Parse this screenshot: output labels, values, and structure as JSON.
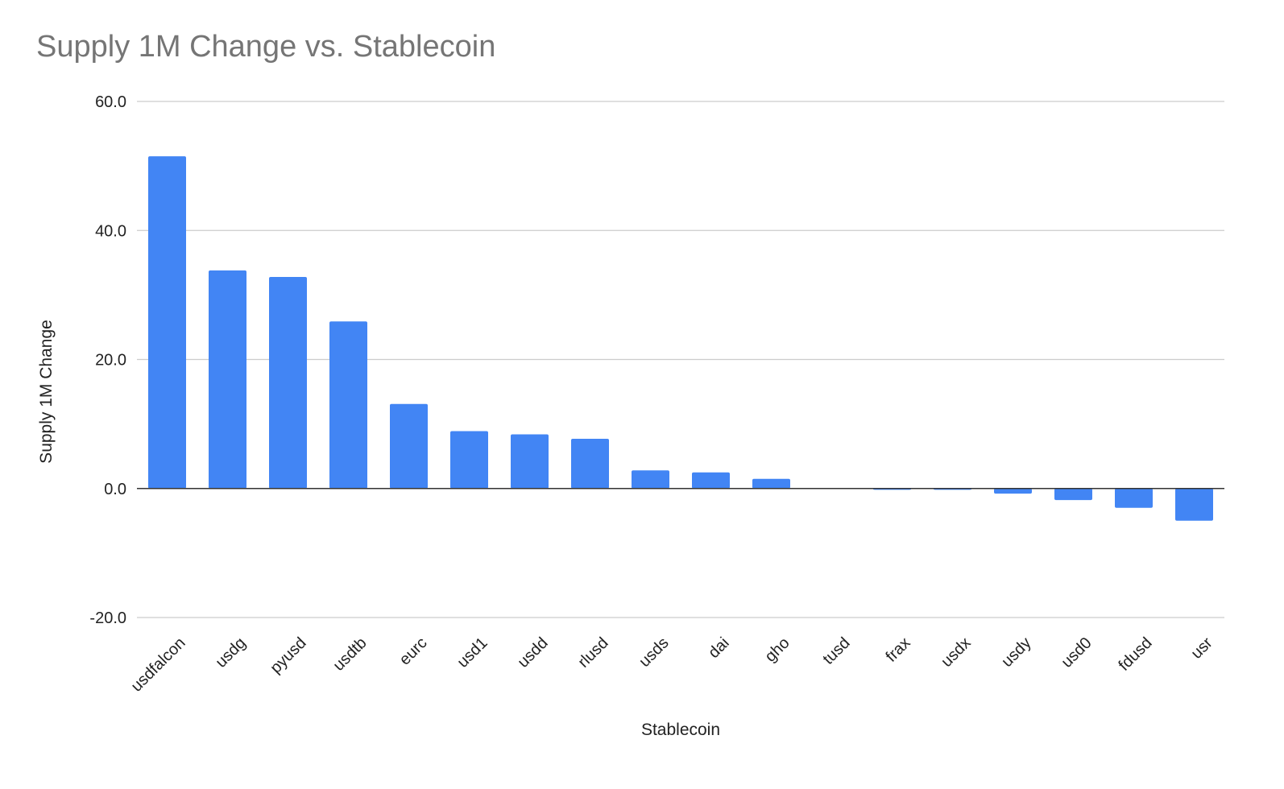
{
  "chart_data": {
    "type": "bar",
    "title": "Supply 1M Change vs. Stablecoin",
    "xlabel": "Stablecoin",
    "ylabel": "Supply 1M Change",
    "categories": [
      "usdfalcon",
      "usdg",
      "pyusd",
      "usdtb",
      "eurc",
      "usd1",
      "usdd",
      "rlusd",
      "usds",
      "dai",
      "gho",
      "tusd",
      "frax",
      "usdx",
      "usdy",
      "usd0",
      "fdusd",
      "usr"
    ],
    "values": [
      51.5,
      33.8,
      32.8,
      25.9,
      13.1,
      8.9,
      8.4,
      7.7,
      2.8,
      2.5,
      1.5,
      0.0,
      -0.2,
      -0.2,
      -0.8,
      -1.8,
      -3.0,
      -5.0
    ],
    "yticks": [
      "60.0",
      "40.0",
      "20.0",
      "0.0",
      "-20.0"
    ],
    "ylim": [
      -20,
      60
    ],
    "grid": true,
    "bar_color": "#4285f4",
    "gridline_color": "#cccccc",
    "title_color": "#757575"
  }
}
